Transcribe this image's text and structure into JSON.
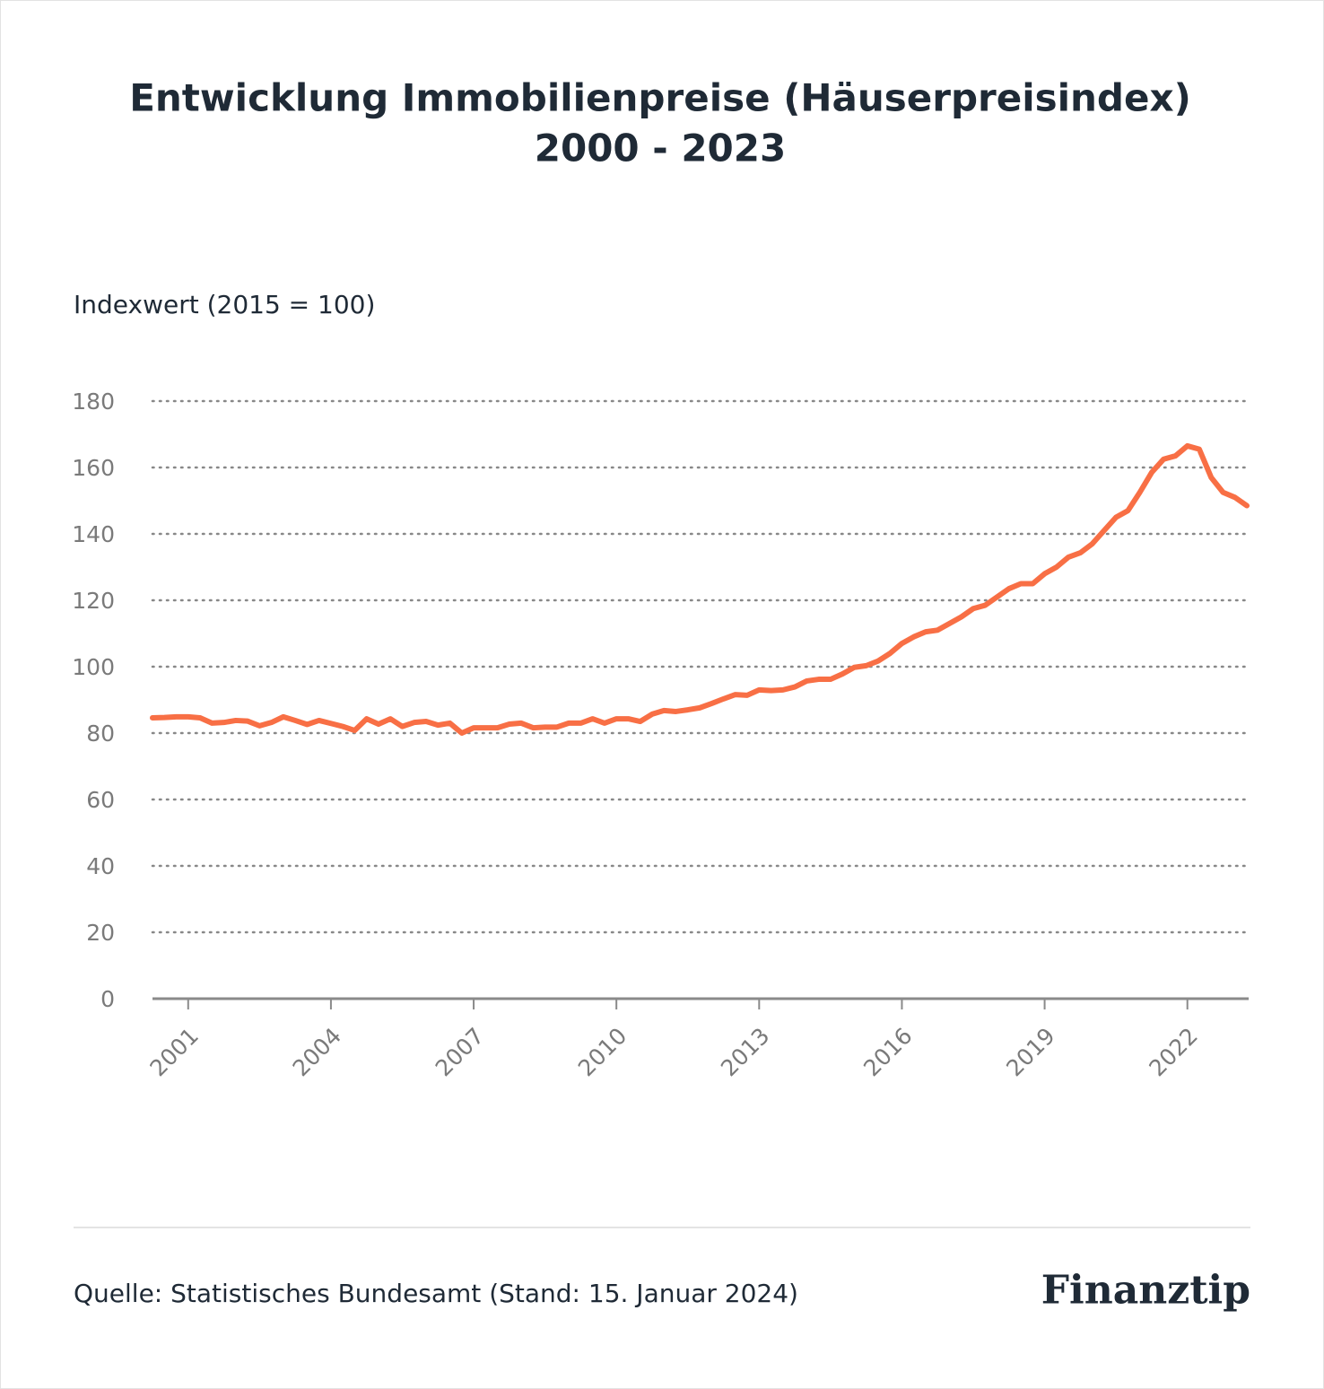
{
  "chart_data": {
    "type": "line",
    "title": "Entwicklung Immobilienpreise (Häuserpreisindex)",
    "subtitle": "2000 - 2023",
    "y_label": "Indexwert (2015 = 100)",
    "source": "Quelle: Statistisches Bundesamt (Stand: 15. Januar 2024)",
    "brand": "Finanztip",
    "x": [
      2000.25,
      2000.5,
      2000.75,
      2001,
      2001.25,
      2001.5,
      2001.75,
      2002,
      2002.25,
      2002.5,
      2002.75,
      2003,
      2003.25,
      2003.5,
      2003.75,
      2004,
      2004.25,
      2004.5,
      2004.75,
      2005,
      2005.25,
      2005.5,
      2005.75,
      2006,
      2006.25,
      2006.5,
      2006.75,
      2007,
      2007.25,
      2007.5,
      2007.75,
      2008,
      2008.25,
      2008.5,
      2008.75,
      2009,
      2009.25,
      2009.5,
      2009.75,
      2010,
      2010.25,
      2010.5,
      2010.75,
      2011,
      2011.25,
      2011.5,
      2011.75,
      2012,
      2012.25,
      2012.5,
      2012.75,
      2013,
      2013.25,
      2013.5,
      2013.75,
      2014,
      2014.25,
      2014.5,
      2014.75,
      2015,
      2015.25,
      2015.5,
      2015.75,
      2016,
      2016.25,
      2016.5,
      2016.75,
      2017,
      2017.25,
      2017.5,
      2017.75,
      2018,
      2018.25,
      2018.5,
      2018.75,
      2019,
      2019.25,
      2019.5,
      2019.75,
      2020,
      2020.25,
      2020.5,
      2020.75,
      2021,
      2021.25,
      2021.5,
      2021.75,
      2022,
      2022.25,
      2022.5,
      2022.75,
      2023,
      2023.25
    ],
    "series": [
      {
        "name": "Häuserpreisindex",
        "color": "#f86f45",
        "values": [
          84.6,
          84.7,
          84.9,
          84.9,
          84.6,
          83.0,
          83.2,
          83.8,
          83.6,
          82.2,
          83.2,
          84.9,
          83.8,
          82.6,
          83.8,
          82.9,
          82.0,
          80.8,
          84.3,
          82.7,
          84.3,
          82.0,
          83.2,
          83.5,
          82.4,
          83.0,
          80.0,
          81.6,
          81.6,
          81.6,
          82.7,
          83.0,
          81.6,
          81.8,
          81.8,
          83.0,
          83.0,
          84.3,
          83.0,
          84.3,
          84.3,
          83.5,
          85.7,
          86.8,
          86.5,
          87.0,
          87.6,
          88.9,
          90.3,
          91.6,
          91.4,
          93.0,
          92.8,
          93.0,
          93.9,
          95.7,
          96.2,
          96.2,
          97.8,
          99.8,
          100.3,
          101.7,
          104.0,
          107.0,
          109.0,
          110.5,
          111.0,
          113.0,
          115.0,
          117.5,
          118.5,
          121.0,
          123.5,
          125.0,
          125.0,
          128.0,
          130.0,
          133.0,
          134.3,
          137.0,
          141.0,
          145.0,
          147.0,
          152.5,
          158.5,
          162.5,
          163.5,
          166.5,
          165.5,
          157.0,
          152.5,
          151.0,
          148.5
        ]
      }
    ],
    "xlim": [
      2000.25,
      2023.25
    ],
    "xticks": [
      2001,
      2004,
      2007,
      2010,
      2013,
      2016,
      2019,
      2022
    ],
    "ylim": [
      0,
      180
    ],
    "yticks": [
      0,
      20,
      40,
      60,
      80,
      100,
      120,
      140,
      160,
      180
    ],
    "grid": true
  }
}
